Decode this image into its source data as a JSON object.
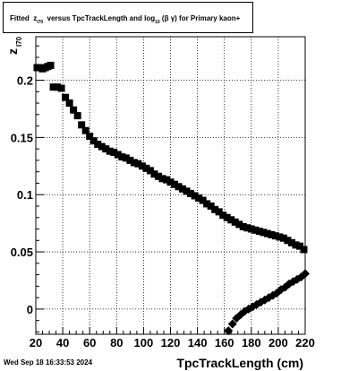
{
  "title": {
    "prefix": "Fitted",
    "z_main": "z",
    "z_sub": "I70",
    "middle": "versus TpcTrackLength and log",
    "log_sub": "10",
    "beta_gamma": "(β  γ)",
    "suffix": "for Primary kaon+"
  },
  "timestamp": "Wed Sep 18 16:33:53 2024",
  "chart_data": {
    "type": "scatter",
    "title": "Fitted z_I70 versus TpcTrackLength and log10(β γ) for Primary kaon+",
    "xlabel": "TpcTrackLength (cm)",
    "ylabel_main": "z",
    "ylabel_sub": "I70",
    "xlim": [
      20,
      220
    ],
    "ylim": [
      -0.022,
      0.238
    ],
    "grid": true,
    "x_ticks": [
      20,
      40,
      60,
      80,
      100,
      120,
      140,
      160,
      180,
      200,
      220
    ],
    "y_ticks": [
      0,
      0.05,
      0.1,
      0.15,
      0.2
    ],
    "y_tick_labels": [
      "0",
      "0.05",
      "0.1",
      "0.15",
      "0.2"
    ],
    "series": [
      {
        "marker": "square",
        "x": [
          21,
          23,
          25,
          27,
          29,
          31,
          33,
          36,
          39,
          42,
          45,
          48,
          51,
          54,
          57,
          60,
          63,
          66,
          69,
          72,
          75,
          78,
          81,
          84,
          87,
          90,
          93,
          96,
          99,
          102,
          105,
          108,
          111,
          114,
          117,
          120,
          123,
          126,
          129,
          132,
          135,
          138,
          141,
          144,
          147,
          150,
          153,
          156,
          159,
          162,
          165,
          168,
          171,
          174,
          177,
          180,
          183,
          186,
          189,
          192,
          195,
          198,
          201,
          204,
          207,
          210,
          213,
          216,
          219
        ],
        "y": [
          0.211,
          0.211,
          0.21,
          0.211,
          0.212,
          0.213,
          0.194,
          0.194,
          0.193,
          0.185,
          0.18,
          0.174,
          0.169,
          0.161,
          0.156,
          0.151,
          0.147,
          0.144,
          0.142,
          0.14,
          0.138,
          0.137,
          0.135,
          0.133,
          0.132,
          0.13,
          0.128,
          0.127,
          0.125,
          0.123,
          0.121,
          0.118,
          0.116,
          0.114,
          0.113,
          0.111,
          0.109,
          0.107,
          0.105,
          0.103,
          0.101,
          0.099,
          0.097,
          0.095,
          0.092,
          0.09,
          0.087,
          0.085,
          0.082,
          0.08,
          0.078,
          0.076,
          0.074,
          0.072,
          0.071,
          0.07,
          0.069,
          0.068,
          0.067,
          0.066,
          0.065,
          0.064,
          0.063,
          0.062,
          0.06,
          0.058,
          0.056,
          0.055,
          0.052
        ]
      },
      {
        "marker": "diamond",
        "x": [
          163,
          166,
          169,
          172,
          175,
          178,
          181,
          184,
          187,
          190,
          193,
          196,
          199,
          202,
          205,
          208,
          211,
          214,
          217,
          220
        ],
        "y": [
          -0.019,
          -0.013,
          -0.008,
          -0.005,
          -0.002,
          0.0,
          0.002,
          0.004,
          0.006,
          0.008,
          0.01,
          0.012,
          0.014,
          0.017,
          0.019,
          0.022,
          0.024,
          0.026,
          0.028,
          0.031
        ]
      }
    ]
  }
}
